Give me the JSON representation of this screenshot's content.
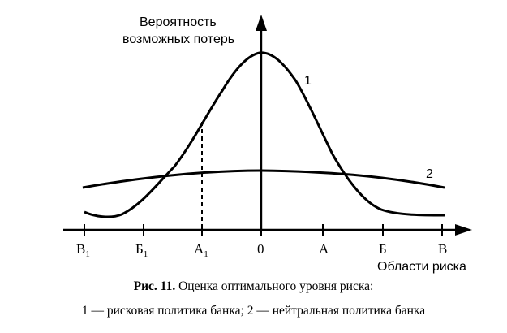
{
  "y_axis_label_line1": "Вероятность",
  "y_axis_label_line2": "возможных потерь",
  "x_axis_label": "Области риска",
  "curve1_label": "1",
  "curve2_label": "2",
  "ticks": [
    {
      "label": "В",
      "sub": "1"
    },
    {
      "label": "Б",
      "sub": "1"
    },
    {
      "label": "А",
      "sub": "1"
    },
    {
      "label": "0",
      "sub": ""
    },
    {
      "label": "А",
      "sub": ""
    },
    {
      "label": "Б",
      "sub": ""
    },
    {
      "label": "В",
      "sub": ""
    }
  ],
  "caption": {
    "prefix": "Рис. 11.",
    "title": "Оценка оптимального уровня риска:",
    "line2": "1 — рисковая политика банка; 2 — нейтральная политика банка"
  }
}
